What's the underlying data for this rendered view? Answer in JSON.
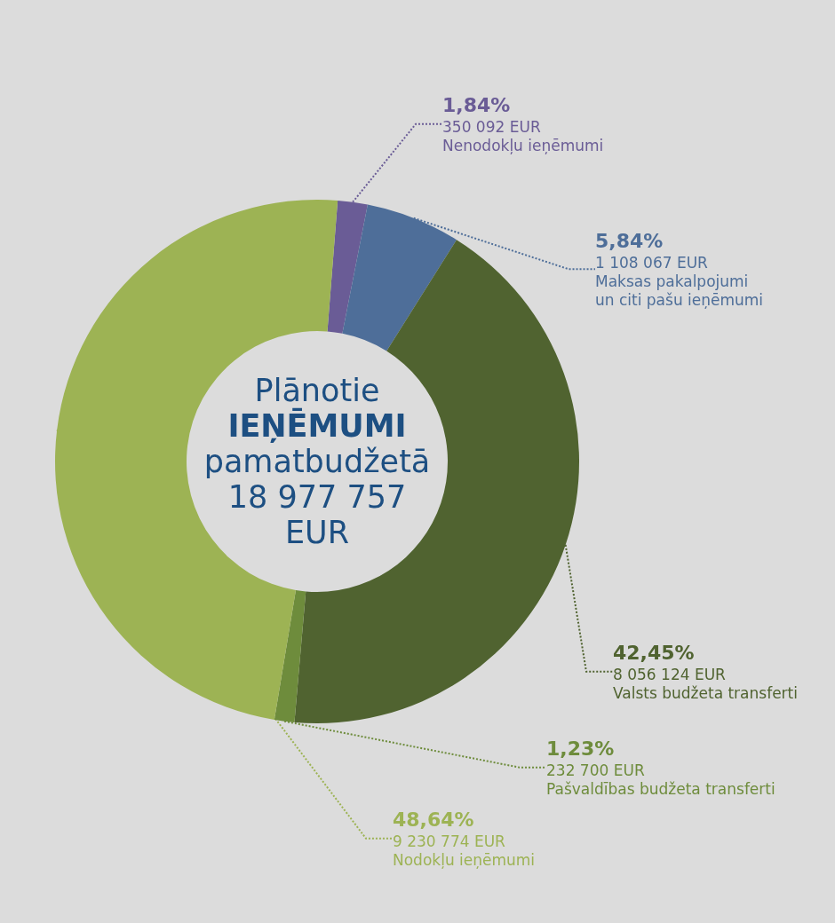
{
  "chart_data": {
    "type": "donut",
    "title": "Plānotie IEŅĒMUMI pamatbudžetā",
    "subtitle": "18 977 757 EUR",
    "categories": [
      "Nenodokļu ieņēmumi",
      "Maksas pakalpojumi\nun citi pašu ieņēmumi",
      "Valsts budžeta transferti",
      "Pašvaldības budžeta transferti",
      "Nodokļu ieņēmumi"
    ],
    "values": [
      1.84,
      5.84,
      42.45,
      1.23,
      48.64
    ],
    "colors": [
      "#6a5c96",
      "#4e6e99",
      "#506330",
      "#6e8c3c",
      "#9db354"
    ],
    "value_labels": [
      "1,84%\n350 092 EUR",
      "5,84%\n1 108 067 EUR",
      "42,45%\n8 056 124 EUR",
      "1,23%\n232 700 EUR",
      "48,64%\n9 230 774 EUR"
    ]
  }
}
